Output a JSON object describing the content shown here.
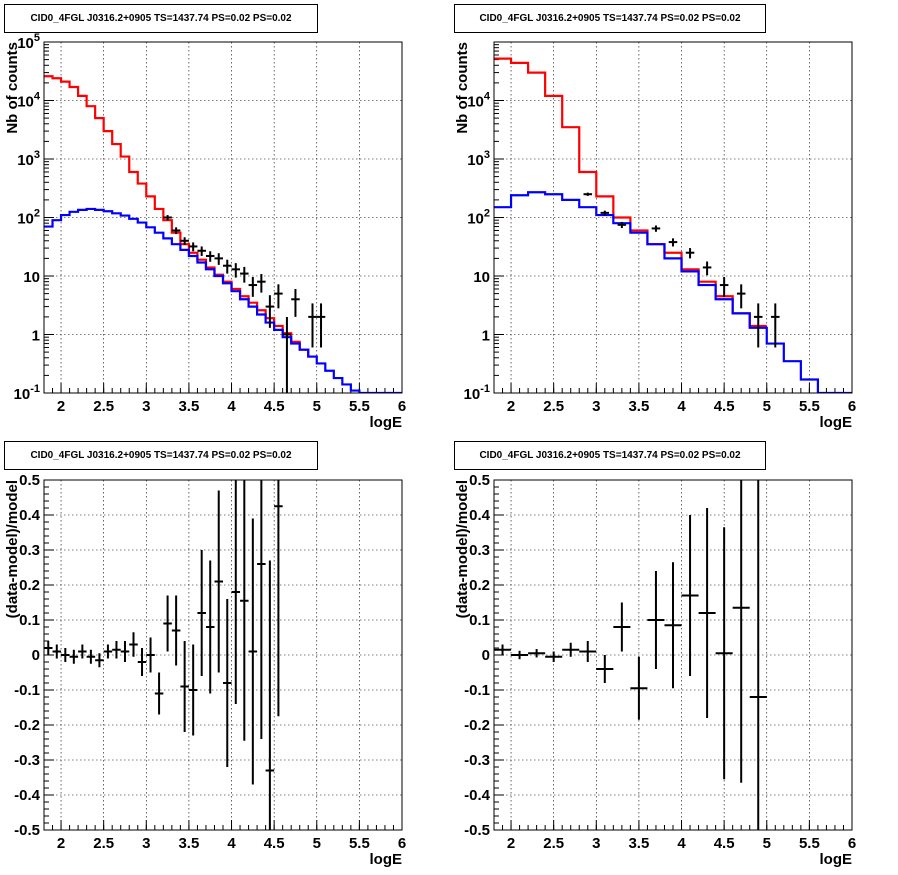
{
  "panels": [
    {
      "title": "CID0_4FGL J0316.2+0905 TS=1437.74 PS=0.02 PS=0.02"
    },
    {
      "title": "CID0_4FGL J0316.2+0905 TS=1437.74 PS=0.02 PS=0.02"
    },
    {
      "title": "CID0_4FGL J0316.2+0905 TS=1437.74 PS=0.02 PS=0.02"
    },
    {
      "title": "CID0_4FGL J0316.2+0905 TS=1437.74 PS=0.02 PS=0.02"
    }
  ],
  "chart_data": [
    {
      "type": "line",
      "title": "CID0_4FGL J0316.2+0905 TS=1437.74 PS=0.02 PS=0.02",
      "xlabel": "logE",
      "ylabel": "Nb of counts",
      "xlim": [
        1.8,
        6
      ],
      "ylim": [
        0.1,
        100000
      ],
      "yscale": "log",
      "grid": true,
      "x_ticks": [
        "2",
        "2.5",
        "3",
        "3.5",
        "4",
        "4.5",
        "5",
        "5.5",
        "6"
      ],
      "y_ticks": [
        "10^-1",
        "1",
        "10",
        "10^2",
        "10^3",
        "10^4",
        "10^5"
      ],
      "bin_edges": [
        1.8,
        1.9,
        2.0,
        2.1,
        2.2,
        2.3,
        2.4,
        2.5,
        2.6,
        2.7,
        2.8,
        2.9,
        3.0,
        3.1,
        3.2,
        3.3,
        3.4,
        3.5,
        3.6,
        3.7,
        3.8,
        3.9,
        4.0,
        4.1,
        4.2,
        4.3,
        4.4,
        4.5,
        4.6,
        4.7,
        4.8,
        4.9,
        5.0,
        5.1,
        5.2,
        5.3,
        5.4,
        5.5,
        5.6,
        5.7,
        5.8,
        5.9,
        6.0
      ],
      "series": [
        {
          "color": "#ff0000",
          "style": "step",
          "values": [
            26000,
            24000,
            21000,
            17000,
            12000,
            8000,
            5000,
            3000,
            1800,
            1100,
            600,
            380,
            230,
            140,
            90,
            55,
            35,
            25,
            19,
            14,
            10.5,
            8,
            6,
            4.5,
            3.5,
            2.6,
            1.9,
            1.4,
            1.05,
            0.75,
            0.55,
            0.42,
            null,
            null,
            null,
            null,
            null,
            null,
            null,
            null,
            null,
            null
          ]
        },
        {
          "color": "#0000ff",
          "style": "step",
          "values": [
            70,
            90,
            110,
            125,
            135,
            140,
            135,
            128,
            118,
            108,
            95,
            82,
            68,
            55,
            44,
            35,
            28,
            22,
            17,
            13,
            10,
            7.5,
            5.5,
            4,
            3,
            2.2,
            1.6,
            1.2,
            0.9,
            0.7,
            0.55,
            0.42,
            0.32,
            0.24,
            0.18,
            0.14,
            0.11,
            0.1,
            0.1,
            0.1,
            0.1,
            0.1
          ]
        },
        {
          "color": "#000000",
          "style": "errorbar",
          "points": [
            {
              "x": 3.25,
              "y": 100,
              "yerr": 10
            },
            {
              "x": 3.35,
              "y": 60,
              "yerr": 8
            },
            {
              "x": 3.45,
              "y": 40,
              "yerr": 6
            },
            {
              "x": 3.55,
              "y": 32,
              "yerr": 5.5
            },
            {
              "x": 3.65,
              "y": 27,
              "yerr": 5
            },
            {
              "x": 3.75,
              "y": 22,
              "yerr": 4.5
            },
            {
              "x": 3.85,
              "y": 20,
              "yerr": 4.5
            },
            {
              "x": 3.95,
              "y": 15,
              "yerr": 4
            },
            {
              "x": 4.05,
              "y": 13,
              "yerr": 3.6
            },
            {
              "x": 4.15,
              "y": 11,
              "yerr": 3.3
            },
            {
              "x": 4.25,
              "y": 7,
              "yerr": 2.6
            },
            {
              "x": 4.35,
              "y": 8,
              "yerr": 2.8
            },
            {
              "x": 4.45,
              "y": 3,
              "yerr": 1.7
            },
            {
              "x": 4.55,
              "y": 5,
              "yerr": 2.2
            },
            {
              "x": 4.65,
              "y": 1,
              "yerr": 0.99
            },
            {
              "x": 4.75,
              "y": 4,
              "yerr": 2
            },
            {
              "x": 4.95,
              "y": 2,
              "yerr": 1.4
            },
            {
              "x": 5.05,
              "y": 2,
              "yerr": 1.4
            }
          ]
        }
      ]
    },
    {
      "type": "line",
      "title": "CID0_4FGL J0316.2+0905 TS=1437.74 PS=0.02 PS=0.02",
      "xlabel": "logE",
      "ylabel": "Nb of counts",
      "xlim": [
        1.8,
        6
      ],
      "ylim": [
        0.1,
        100000
      ],
      "yscale": "log",
      "grid": true,
      "x_ticks": [
        "2",
        "2.5",
        "3",
        "3.5",
        "4",
        "4.5",
        "5",
        "5.5",
        "6"
      ],
      "y_ticks": [
        "10^-1",
        "1",
        "10",
        "10^2",
        "10^3",
        "10^4"
      ],
      "bin_edges": [
        1.8,
        2.0,
        2.2,
        2.4,
        2.6,
        2.8,
        3.0,
        3.2,
        3.4,
        3.6,
        3.8,
        4.0,
        4.2,
        4.4,
        4.6,
        4.8,
        5.0,
        5.2,
        5.4,
        5.6,
        5.8,
        6.0
      ],
      "series": [
        {
          "color": "#ff0000",
          "style": "step",
          "values": [
            52000,
            44000,
            30000,
            12000,
            3500,
            600,
            230,
            100,
            60,
            35,
            25,
            13,
            8,
            4.5,
            2.3,
            1.4,
            null,
            null,
            null,
            null,
            null
          ]
        },
        {
          "color": "#0000ff",
          "style": "step",
          "values": [
            150,
            240,
            270,
            250,
            200,
            150,
            110,
            80,
            55,
            35,
            20,
            12,
            7,
            4,
            2.3,
            1.3,
            0.7,
            0.35,
            0.17,
            0.1,
            0.1
          ]
        },
        {
          "color": "#000000",
          "style": "errorbar",
          "points": [
            {
              "x": 2.9,
              "y": 250,
              "yerr": 16
            },
            {
              "x": 3.1,
              "y": 120,
              "yerr": 11
            },
            {
              "x": 3.3,
              "y": 75,
              "yerr": 9
            },
            {
              "x": 3.7,
              "y": 65,
              "yerr": 8
            },
            {
              "x": 3.9,
              "y": 38,
              "yerr": 6
            },
            {
              "x": 4.1,
              "y": 25,
              "yerr": 5
            },
            {
              "x": 4.3,
              "y": 14,
              "yerr": 3.7
            },
            {
              "x": 4.5,
              "y": 7,
              "yerr": 2.6
            },
            {
              "x": 4.7,
              "y": 5,
              "yerr": 2.2
            },
            {
              "x": 4.9,
              "y": 2,
              "yerr": 1.4
            },
            {
              "x": 5.1,
              "y": 2,
              "yerr": 1.4
            }
          ]
        }
      ]
    },
    {
      "type": "scatter",
      "title": "CID0_4FGL J0316.2+0905 TS=1437.74 PS=0.02 PS=0.02",
      "xlabel": "logE",
      "ylabel": "(data-model)/model",
      "xlim": [
        1.8,
        6
      ],
      "ylim": [
        -0.5,
        0.5
      ],
      "grid": true,
      "x_ticks": [
        "2",
        "2.5",
        "3",
        "3.5",
        "4",
        "4.5",
        "5",
        "5.5",
        "6"
      ],
      "y_ticks": [
        "-0.5",
        "-0.4",
        "-0.3",
        "-0.2",
        "-0.1",
        "0",
        "0.1",
        "0.2",
        "0.3",
        "0.4",
        "0.5"
      ],
      "series": [
        {
          "color": "#000000",
          "style": "errorbar",
          "xerr": 0.05,
          "points": [
            {
              "x": 1.85,
              "y": 0.02,
              "yerr": 0.02
            },
            {
              "x": 1.95,
              "y": 0.01,
              "yerr": 0.02
            },
            {
              "x": 2.05,
              "y": 0.0,
              "yerr": 0.02
            },
            {
              "x": 2.15,
              "y": -0.005,
              "yerr": 0.02
            },
            {
              "x": 2.25,
              "y": 0.01,
              "yerr": 0.02
            },
            {
              "x": 2.35,
              "y": -0.005,
              "yerr": 0.02
            },
            {
              "x": 2.45,
              "y": -0.015,
              "yerr": 0.02
            },
            {
              "x": 2.55,
              "y": 0.01,
              "yerr": 0.02
            },
            {
              "x": 2.65,
              "y": 0.015,
              "yerr": 0.025
            },
            {
              "x": 2.75,
              "y": 0.01,
              "yerr": 0.03
            },
            {
              "x": 2.85,
              "y": 0.03,
              "yerr": 0.035
            },
            {
              "x": 2.95,
              "y": -0.02,
              "yerr": 0.04
            },
            {
              "x": 3.05,
              "y": 0.0,
              "yerr": 0.05
            },
            {
              "x": 3.15,
              "y": -0.11,
              "yerr": 0.06
            },
            {
              "x": 3.25,
              "y": 0.09,
              "yerr": 0.08
            },
            {
              "x": 3.35,
              "y": 0.07,
              "yerr": 0.1
            },
            {
              "x": 3.45,
              "y": -0.09,
              "yerr": 0.13
            },
            {
              "x": 3.55,
              "y": -0.1,
              "yerr": 0.13
            },
            {
              "x": 3.65,
              "y": 0.12,
              "yerr": 0.18
            },
            {
              "x": 3.75,
              "y": 0.08,
              "yerr": 0.19
            },
            {
              "x": 3.85,
              "y": 0.21,
              "yerr": 0.26
            },
            {
              "x": 3.95,
              "y": -0.08,
              "yerr": 0.24
            },
            {
              "x": 4.05,
              "y": 0.18,
              "yerr": 0.32
            },
            {
              "x": 4.15,
              "y": 0.155,
              "yerr": 0.4
            },
            {
              "x": 4.25,
              "y": 0.01,
              "yerr": 0.38
            },
            {
              "x": 4.35,
              "y": 0.26,
              "yerr": 0.5
            },
            {
              "x": 4.45,
              "y": -0.33,
              "yerr": 0.6
            },
            {
              "x": 4.55,
              "y": 0.425,
              "yerr": 0.6
            }
          ]
        }
      ]
    },
    {
      "type": "scatter",
      "title": "CID0_4FGL J0316.2+0905 TS=1437.74 PS=0.02 PS=0.02",
      "xlabel": "logE",
      "ylabel": "(data-model)/model",
      "xlim": [
        1.8,
        6
      ],
      "ylim": [
        -0.5,
        0.5
      ],
      "grid": true,
      "x_ticks": [
        "2",
        "2.5",
        "3",
        "3.5",
        "4",
        "4.5",
        "5",
        "5.5",
        "6"
      ],
      "y_ticks": [
        "-0.5",
        "-0.4",
        "-0.3",
        "-0.2",
        "-0.1",
        "0",
        "0.1",
        "0.2",
        "0.3",
        "0.4",
        "0.5"
      ],
      "series": [
        {
          "color": "#000000",
          "style": "errorbar",
          "xerr": 0.1,
          "points": [
            {
              "x": 1.9,
              "y": 0.015,
              "yerr": 0.015
            },
            {
              "x": 2.1,
              "y": 0.0,
              "yerr": 0.012
            },
            {
              "x": 2.3,
              "y": 0.005,
              "yerr": 0.012
            },
            {
              "x": 2.5,
              "y": -0.005,
              "yerr": 0.015
            },
            {
              "x": 2.7,
              "y": 0.015,
              "yerr": 0.02
            },
            {
              "x": 2.9,
              "y": 0.01,
              "yerr": 0.03
            },
            {
              "x": 3.1,
              "y": -0.04,
              "yerr": 0.04
            },
            {
              "x": 3.3,
              "y": 0.08,
              "yerr": 0.07
            },
            {
              "x": 3.5,
              "y": -0.095,
              "yerr": 0.09
            },
            {
              "x": 3.7,
              "y": 0.1,
              "yerr": 0.14
            },
            {
              "x": 3.9,
              "y": 0.085,
              "yerr": 0.18
            },
            {
              "x": 4.1,
              "y": 0.17,
              "yerr": 0.23
            },
            {
              "x": 4.3,
              "y": 0.12,
              "yerr": 0.3
            },
            {
              "x": 4.5,
              "y": 0.005,
              "yerr": 0.36
            },
            {
              "x": 4.7,
              "y": 0.135,
              "yerr": 0.5
            },
            {
              "x": 4.9,
              "y": -0.12,
              "yerr": 0.8
            }
          ]
        }
      ]
    }
  ]
}
